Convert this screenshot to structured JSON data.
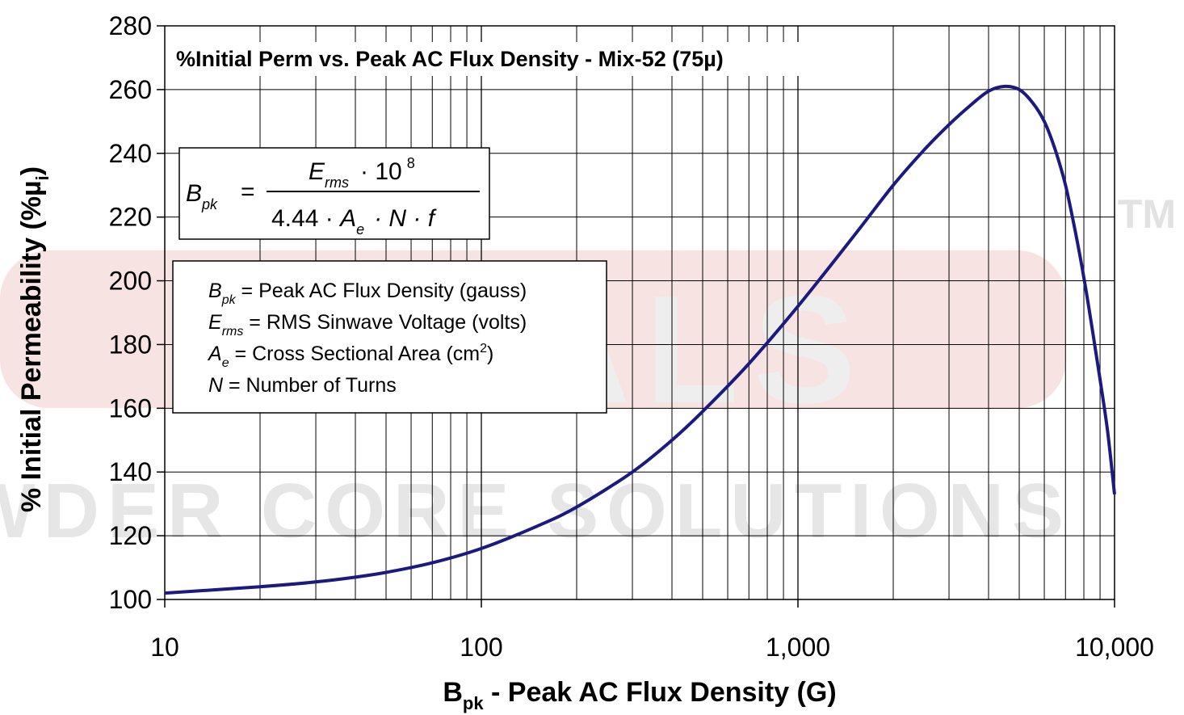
{
  "chart_data": {
    "type": "line",
    "title": "%Initial Perm vs. Peak AC Flux Density - Mix-52  (75µ)",
    "xlabel": {
      "main": "B",
      "sub": "pk",
      "rest": " - Peak AC Flux Density (G)"
    },
    "ylabel": {
      "main": "% Initial Permeability (%µ",
      "sub": "i",
      "rest": ")"
    },
    "xscale": "log",
    "xlim": [
      10,
      10000
    ],
    "ylim": [
      100,
      280
    ],
    "xticks": [
      10,
      100,
      1000,
      10000
    ],
    "xtick_labels": [
      "10",
      "100",
      "1,000",
      "10,000"
    ],
    "yticks": [
      100,
      120,
      140,
      160,
      180,
      200,
      220,
      240,
      260,
      280
    ],
    "ytick_labels": [
      "100",
      "120",
      "140",
      "160",
      "180",
      "200",
      "220",
      "240",
      "260",
      "280"
    ],
    "grid": true,
    "series": [
      {
        "color": "#1a1a80",
        "x": [
          10,
          20,
          30,
          40,
          50,
          70,
          100,
          150,
          200,
          300,
          400,
          500,
          700,
          1000,
          1500,
          2000,
          2500,
          3000,
          3500,
          4000,
          4500,
          5000,
          5500,
          6000,
          6500,
          7000,
          7500,
          8000,
          8500,
          9000,
          9500,
          10000
        ],
        "y": [
          102,
          104,
          105.5,
          107,
          108.5,
          111.5,
          116,
          123,
          129,
          140,
          150,
          159,
          174,
          192,
          214,
          230,
          241,
          249,
          255,
          259.5,
          261,
          260,
          256,
          250,
          241,
          230,
          216,
          201,
          185,
          169,
          153,
          133
        ]
      }
    ]
  },
  "formula": {
    "lhs": "B",
    "lhs_sub": "pk",
    "eq": "=",
    "num_var": "E",
    "num_sub": "rms",
    "num_rest": "· 10",
    "num_exp": "8",
    "den_const": "4.44 · ",
    "den_a": "A",
    "den_a_sub": "e",
    "den_rest": "· N · f"
  },
  "legend_lines": [
    {
      "var": "B",
      "sub": "pk",
      "text": " = Peak AC Flux Density (gauss)"
    },
    {
      "var": "E",
      "sub": "rms",
      "text": " = RMS Sinwave Voltage (volts)"
    },
    {
      "var": "A",
      "sub": "e",
      "text": " = Cross Sectional Area (cm",
      "sup": "2",
      "tail": ")"
    },
    {
      "var": "N",
      "sub": "",
      "text": " = Number of Turns"
    }
  ],
  "watermark": {
    "line1": "METALS",
    "line2": "WDER CORE SOLUTIONS",
    "tm": "TM"
  },
  "colors": {
    "curve": "#1a1a80",
    "grid": "#000000",
    "watermark_red": "#f3d5d5",
    "watermark_gray": "#e8e8e8"
  }
}
